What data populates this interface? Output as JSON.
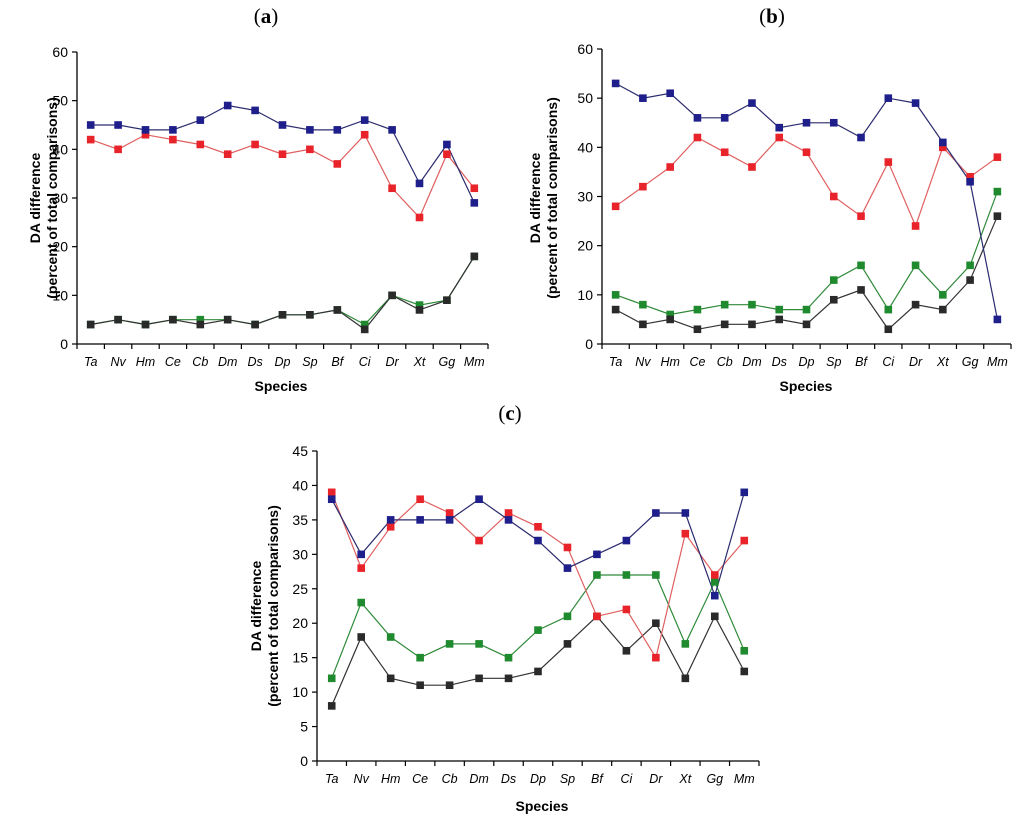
{
  "figure": {
    "colors": {
      "blue": "#1f1f8c",
      "red": "#e8242a",
      "green": "#1f8a2e",
      "black": "#2a2a2a",
      "line_blue": "#2b2b6e",
      "line_red": "#e06060",
      "line_green": "#2f8a3a",
      "line_black": "#333333"
    }
  },
  "chart_data": [
    {
      "type": "line",
      "panel": "a",
      "panel_label": "a",
      "xlabel": "Species",
      "ylabel_line1": "DA difference",
      "ylabel_line2": "(percent of total comparisons)",
      "ylim": [
        0,
        60
      ],
      "yticks": [
        0,
        10,
        20,
        30,
        40,
        50,
        60
      ],
      "categories": [
        "Ta",
        "Nv",
        "Hm",
        "Ce",
        "Cb",
        "Dm",
        "Ds",
        "Dp",
        "Sp",
        "Bf",
        "Ci",
        "Dr",
        "Xt",
        "Gg",
        "Mm"
      ],
      "series": [
        {
          "name": "green",
          "color": "green",
          "values": [
            4,
            5,
            4,
            5,
            5,
            5,
            4,
            6,
            6,
            7,
            4,
            10,
            8,
            9,
            18
          ]
        },
        {
          "name": "black",
          "color": "black",
          "values": [
            4,
            5,
            4,
            5,
            4,
            5,
            4,
            6,
            6,
            7,
            3,
            10,
            7,
            9,
            18
          ]
        },
        {
          "name": "red",
          "color": "red",
          "values": [
            42,
            40,
            43,
            42,
            41,
            39,
            41,
            39,
            40,
            37,
            43,
            32,
            26,
            39,
            32
          ]
        },
        {
          "name": "blue",
          "color": "blue",
          "values": [
            45,
            45,
            44,
            44,
            46,
            49,
            48,
            45,
            44,
            44,
            46,
            44,
            33,
            41,
            29
          ]
        }
      ]
    },
    {
      "type": "line",
      "panel": "b",
      "panel_label": "b",
      "xlabel": "Species",
      "ylabel_line1": "DA difference",
      "ylabel_line2": "(percent of total comparisons)",
      "ylim": [
        0,
        60
      ],
      "yticks": [
        0,
        10,
        20,
        30,
        40,
        50,
        60
      ],
      "categories": [
        "Ta",
        "Nv",
        "Hm",
        "Ce",
        "Cb",
        "Dm",
        "Ds",
        "Dp",
        "Sp",
        "Bf",
        "Ci",
        "Dr",
        "Xt",
        "Gg",
        "Mm"
      ],
      "series": [
        {
          "name": "green",
          "color": "green",
          "values": [
            10,
            8,
            6,
            7,
            8,
            8,
            7,
            7,
            13,
            16,
            7,
            16,
            10,
            16,
            31
          ]
        },
        {
          "name": "black",
          "color": "black",
          "values": [
            7,
            4,
            5,
            3,
            4,
            4,
            5,
            4,
            9,
            11,
            3,
            8,
            7,
            13,
            26
          ]
        },
        {
          "name": "red",
          "color": "red",
          "values": [
            28,
            32,
            36,
            42,
            39,
            36,
            42,
            39,
            30,
            26,
            37,
            24,
            40,
            34,
            38
          ]
        },
        {
          "name": "blue",
          "color": "blue",
          "values": [
            53,
            50,
            51,
            46,
            46,
            49,
            44,
            45,
            45,
            42,
            50,
            49,
            41,
            33,
            5
          ]
        }
      ]
    },
    {
      "type": "line",
      "panel": "c",
      "panel_label": "c",
      "xlabel": "Species",
      "ylabel_line1": "DA difference",
      "ylabel_line2": "(percent of total comparisons)",
      "ylim": [
        0,
        45
      ],
      "yticks": [
        0,
        5,
        10,
        15,
        20,
        25,
        30,
        35,
        40,
        45
      ],
      "categories": [
        "Ta",
        "Nv",
        "Hm",
        "Ce",
        "Cb",
        "Dm",
        "Ds",
        "Dp",
        "Sp",
        "Bf",
        "Ci",
        "Dr",
        "Xt",
        "Gg",
        "Mm"
      ],
      "series": [
        {
          "name": "green",
          "color": "green",
          "values": [
            12,
            23,
            18,
            15,
            17,
            17,
            15,
            19,
            21,
            27,
            27,
            27,
            17,
            26,
            16
          ]
        },
        {
          "name": "black",
          "color": "black",
          "values": [
            8,
            18,
            12,
            11,
            11,
            12,
            12,
            13,
            17,
            21,
            16,
            20,
            12,
            21,
            13
          ]
        },
        {
          "name": "red",
          "color": "red",
          "values": [
            39,
            28,
            34,
            38,
            36,
            32,
            36,
            34,
            31,
            21,
            22,
            15,
            33,
            27,
            32
          ]
        },
        {
          "name": "blue",
          "color": "blue",
          "values": [
            38,
            30,
            35,
            35,
            35,
            38,
            35,
            32,
            28,
            30,
            32,
            36,
            36,
            24,
            39
          ]
        }
      ]
    }
  ]
}
